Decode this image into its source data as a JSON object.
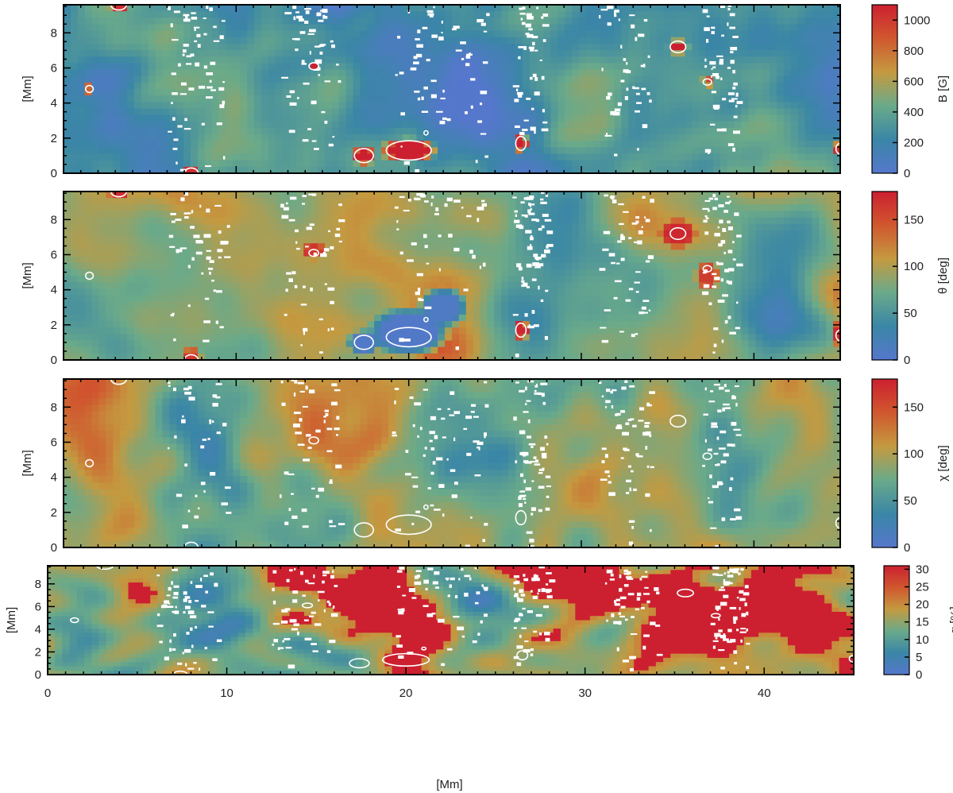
{
  "chart_data": {
    "type": "heatmap",
    "shared_x": {
      "label": "[Mm]",
      "range": [
        0,
        45
      ],
      "ticks": [
        0,
        10,
        20,
        30,
        40
      ]
    },
    "colormap": [
      "#5577cc",
      "#3a86a6",
      "#6aaa8a",
      "#c49a40",
      "#d0572e",
      "#cc2030"
    ],
    "panels": [
      {
        "id": "b",
        "ylabel": "[Mm]",
        "yrange": [
          0,
          9.6
        ],
        "yticks": [
          0,
          2,
          4,
          6,
          8
        ],
        "colorbar": {
          "label": "B [G]",
          "range": [
            0,
            1100
          ],
          "ticks": [
            0,
            200,
            400,
            600,
            800,
            1000
          ]
        },
        "bias": -0.23,
        "contrast": 0.9
      },
      {
        "id": "theta",
        "ylabel": "[Mm]",
        "yrange": [
          0,
          9.6
        ],
        "yticks": [
          0,
          2,
          4,
          6,
          8
        ],
        "colorbar": {
          "label": "θ [deg]",
          "range": [
            0,
            180
          ],
          "ticks": [
            0,
            50,
            100,
            150
          ]
        },
        "bias": 0.0,
        "contrast": 1.0
      },
      {
        "id": "chi",
        "ylabel": "[Mm]",
        "yrange": [
          0,
          9.6
        ],
        "yticks": [
          0,
          2,
          4,
          6,
          8
        ],
        "colorbar": {
          "label": "χ [deg]",
          "range": [
            0,
            180
          ],
          "ticks": [
            0,
            50,
            100,
            150
          ]
        },
        "bias": 0.0,
        "contrast": 1.0
      },
      {
        "id": "alpha",
        "ylabel": "[Mm]",
        "yrange": [
          0,
          9.6
        ],
        "yticks": [
          0,
          2,
          4,
          6,
          8
        ],
        "colorbar": {
          "label": "α [%]",
          "range": [
            0,
            31
          ],
          "ticks": [
            0,
            5,
            10,
            15,
            20,
            25,
            30
          ]
        },
        "bias": 0.05,
        "contrast": 1.5
      }
    ],
    "contours": [
      {
        "x": 17.4,
        "y": 1.0,
        "rx": 0.55,
        "ry": 0.4
      },
      {
        "x": 20.0,
        "y": 1.3,
        "rx": 1.3,
        "ry": 0.55
      },
      {
        "x": 21.0,
        "y": 2.3,
        "rx": 0.12,
        "ry": 0.12
      },
      {
        "x": 26.5,
        "y": 1.7,
        "rx": 0.3,
        "ry": 0.4
      },
      {
        "x": 35.6,
        "y": 7.2,
        "rx": 0.45,
        "ry": 0.33
      },
      {
        "x": 37.3,
        "y": 5.2,
        "rx": 0.25,
        "ry": 0.18
      },
      {
        "x": 14.5,
        "y": 6.1,
        "rx": 0.28,
        "ry": 0.2
      },
      {
        "x": 1.5,
        "y": 4.8,
        "rx": 0.22,
        "ry": 0.2
      },
      {
        "x": 3.2,
        "y": 9.6,
        "rx": 0.45,
        "ry": 0.3
      },
      {
        "x": 7.4,
        "y": 0.0,
        "rx": 0.4,
        "ry": 0.3
      },
      {
        "x": 45.0,
        "y": 1.4,
        "rx": 0.25,
        "ry": 0.3
      }
    ],
    "blobs": {
      "b": [
        {
          "x": 17.4,
          "y": 1.0,
          "rx": 0.6,
          "ry": 0.45,
          "v": 1.0
        },
        {
          "x": 20.0,
          "y": 1.3,
          "rx": 1.4,
          "ry": 0.6,
          "v": 1.0
        },
        {
          "x": 26.5,
          "y": 1.7,
          "rx": 0.35,
          "ry": 0.45,
          "v": 1.0
        },
        {
          "x": 35.6,
          "y": 7.2,
          "rx": 0.5,
          "ry": 0.35,
          "v": 1.0
        },
        {
          "x": 14.5,
          "y": 6.1,
          "rx": 0.3,
          "ry": 0.25,
          "v": 1.0
        },
        {
          "x": 37.3,
          "y": 5.2,
          "rx": 0.3,
          "ry": 0.22,
          "v": 0.9
        },
        {
          "x": 1.5,
          "y": 4.8,
          "rx": 0.25,
          "ry": 0.22,
          "v": 0.9
        },
        {
          "x": 3.2,
          "y": 9.6,
          "rx": 0.5,
          "ry": 0.35,
          "v": 0.95
        },
        {
          "x": 7.4,
          "y": 0.0,
          "rx": 0.45,
          "ry": 0.35,
          "v": 0.95
        },
        {
          "x": 45.0,
          "y": 1.4,
          "rx": 0.3,
          "ry": 0.35,
          "v": 0.95
        }
      ],
      "theta": [
        {
          "x": 17.4,
          "y": 1.0,
          "rx": 0.8,
          "ry": 0.6,
          "v": 0.02
        },
        {
          "x": 20.0,
          "y": 1.6,
          "rx": 2.0,
          "ry": 1.2,
          "v": 0.02
        },
        {
          "x": 22.0,
          "y": 3.0,
          "rx": 1.2,
          "ry": 1.0,
          "v": 0.05
        },
        {
          "x": 26.5,
          "y": 1.7,
          "rx": 0.4,
          "ry": 0.5,
          "v": 0.97
        },
        {
          "x": 35.6,
          "y": 7.2,
          "rx": 0.9,
          "ry": 0.7,
          "v": 0.97
        },
        {
          "x": 37.3,
          "y": 4.8,
          "rx": 0.6,
          "ry": 0.7,
          "v": 0.9
        },
        {
          "x": 14.5,
          "y": 6.2,
          "rx": 0.6,
          "ry": 0.4,
          "v": 0.92
        },
        {
          "x": 45.0,
          "y": 1.5,
          "rx": 0.5,
          "ry": 0.6,
          "v": 0.97
        },
        {
          "x": 7.4,
          "y": 0.2,
          "rx": 0.5,
          "ry": 0.4,
          "v": 0.92
        },
        {
          "x": 3.2,
          "y": 9.5,
          "rx": 0.5,
          "ry": 0.35,
          "v": 0.95
        }
      ],
      "chi": [],
      "alpha": []
    }
  }
}
